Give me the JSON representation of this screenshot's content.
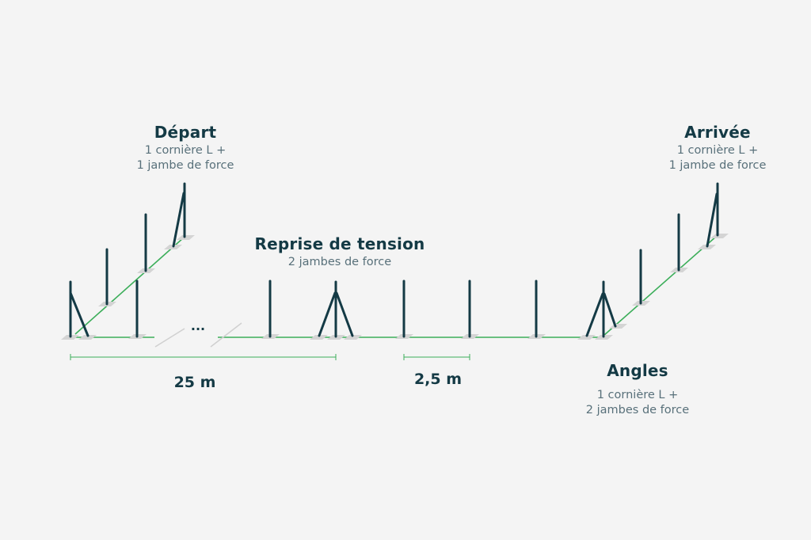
{
  "labels": {
    "depart": {
      "title": "Départ",
      "line1": "1 cornière L +",
      "line2": "1 jambe de force"
    },
    "reprise": {
      "title": "Reprise de tension",
      "line1": "2 jambes de force"
    },
    "arrivee": {
      "title": "Arrivée",
      "line1": "1 cornière L +",
      "line2": "1 jambe de force"
    },
    "angles": {
      "title": "Angles",
      "line1": "1 cornière L +",
      "line2": "2 jambes de force"
    }
  },
  "dimensions": {
    "span_long": "25 m",
    "span_short": "2,5 m"
  },
  "ellipsis": "...",
  "colors": {
    "post": "#143a45",
    "wire": "#3cae5a",
    "base": "#d4d4d4",
    "background": "#f4f4f4"
  }
}
